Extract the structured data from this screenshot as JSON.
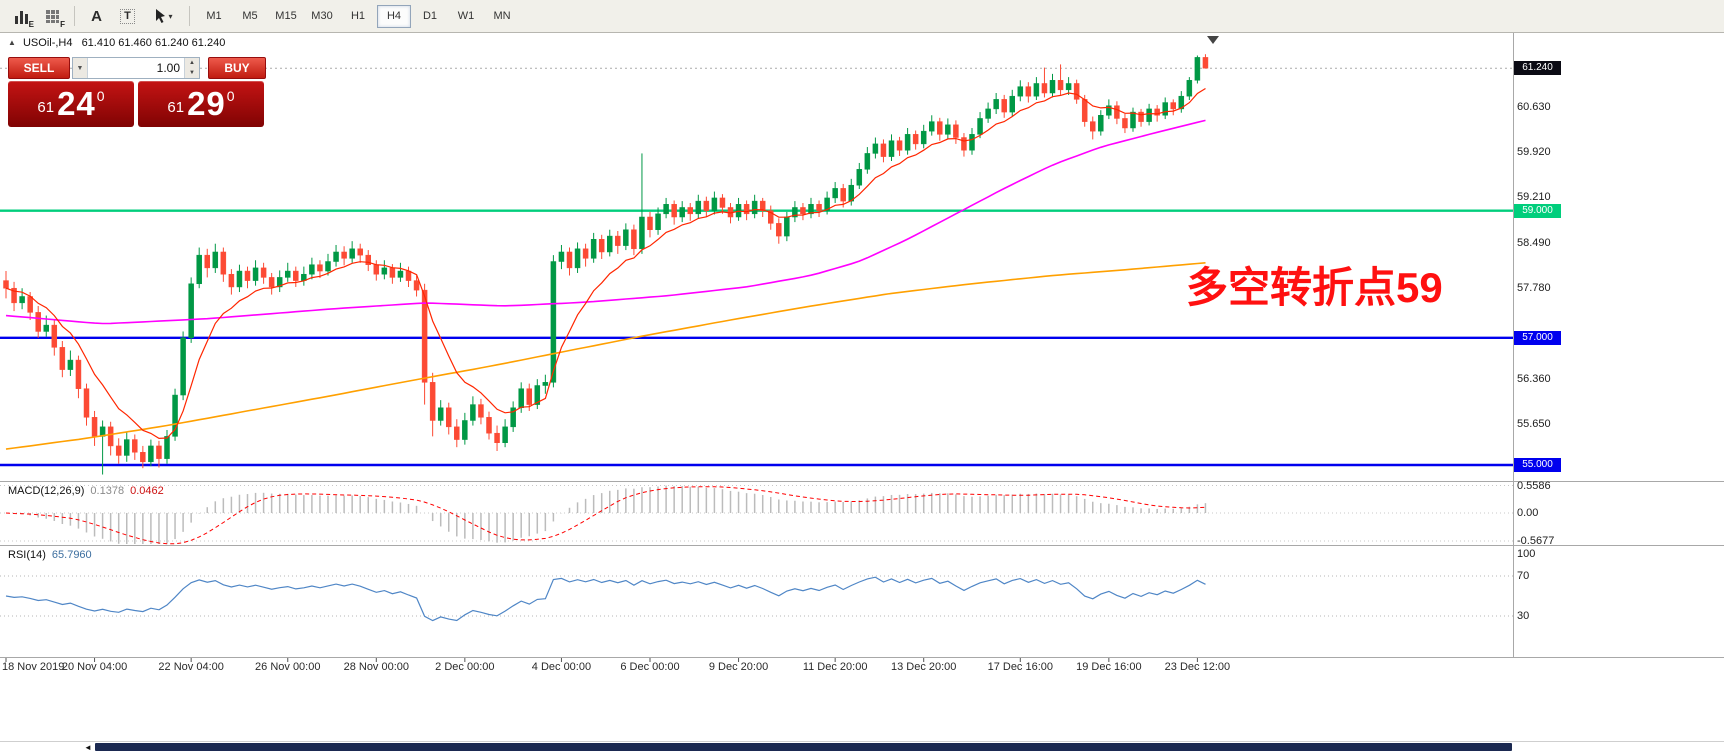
{
  "toolbar": {
    "icons": [
      {
        "name": "bar-chart-expert-icon",
        "sub": "E"
      },
      {
        "name": "grid-forecast-icon",
        "sub": "F"
      },
      {
        "name": "font-tool-icon",
        "text": "A"
      },
      {
        "name": "text-tool-icon",
        "text": "T"
      },
      {
        "name": "cursor-tools-dropdown",
        "dropdown": "▾"
      }
    ],
    "timeframes": [
      {
        "label": "M1",
        "active": false
      },
      {
        "label": "M5",
        "active": false
      },
      {
        "label": "M15",
        "active": false
      },
      {
        "label": "M30",
        "active": false
      },
      {
        "label": "H1",
        "active": false
      },
      {
        "label": "H4",
        "active": true
      },
      {
        "label": "D1",
        "active": false
      },
      {
        "label": "W1",
        "active": false
      },
      {
        "label": "MN",
        "active": false
      }
    ]
  },
  "chart_header": {
    "collapse_glyph": "▲",
    "symbol_period": "USOil-,H4",
    "ohlc": "61.410 61.460 61.240 61.240"
  },
  "trade_panel": {
    "sell_label": "SELL",
    "buy_label": "BUY",
    "volume_value": "1.00",
    "sell_price": {
      "prefix": "61",
      "big": "24",
      "sup": "0"
    },
    "buy_price": {
      "prefix": "61",
      "big": "29",
      "sup": "0"
    }
  },
  "annotation": {
    "text": "多空转折点59",
    "color": "#FF1010"
  },
  "price_axis": {
    "static_labels": [
      "60.630",
      "59.920",
      "59.210",
      "58.490",
      "57.780",
      "56.360",
      "55.650"
    ],
    "tags": [
      {
        "text": "61.240",
        "price": 61.24,
        "bg": "#0B0B14",
        "type": "current-price"
      },
      {
        "text": "59.000",
        "price": 59.0,
        "bg": "#00CE7C",
        "type": "level"
      },
      {
        "text": "57.000",
        "price": 57.0,
        "bg": "#0000EE",
        "type": "level"
      },
      {
        "text": "55.000",
        "price": 55.0,
        "bg": "#0000EE",
        "type": "level"
      }
    ]
  },
  "time_axis": [
    {
      "label": "18 Nov 2019",
      "bar": 0
    },
    {
      "label": "20 Nov 04:00",
      "bar": 11
    },
    {
      "label": "22 Nov 04:00",
      "bar": 23
    },
    {
      "label": "26 Nov 00:00",
      "bar": 35
    },
    {
      "label": "28 Nov 00:00",
      "bar": 46
    },
    {
      "label": "2 Dec 00:00",
      "bar": 57
    },
    {
      "label": "4 Dec 00:00",
      "bar": 69
    },
    {
      "label": "6 Dec 00:00",
      "bar": 80
    },
    {
      "label": "9 Dec 20:00",
      "bar": 91
    },
    {
      "label": "11 Dec 20:00",
      "bar": 103
    },
    {
      "label": "13 Dec 20:00",
      "bar": 114
    },
    {
      "label": "17 Dec 16:00",
      "bar": 126
    },
    {
      "label": "19 Dec 16:00",
      "bar": 137
    },
    {
      "label": "23 Dec 12:00",
      "bar": 148
    }
  ],
  "indicators": {
    "macd": {
      "name": "MACD(12,26,9)",
      "value1": "0.1378",
      "value2": "0.0462",
      "scale": [
        "0.5586",
        "0.00",
        "-0.5677"
      ]
    },
    "rsi": {
      "name": "RSI(14)",
      "value": "65.7960",
      "levels": [
        "100",
        "70",
        "30"
      ]
    }
  },
  "chart_data": {
    "type": "candlestick",
    "symbol": "USOil-",
    "period": "H4",
    "current_price": 61.24,
    "ohlc_current": {
      "open": 61.41,
      "high": 61.46,
      "low": 61.24,
      "close": 61.24
    },
    "price_range": [
      54.764,
      61.778
    ],
    "macd_range": [
      -0.65,
      0.63
    ],
    "rsi_range": [
      -10,
      100
    ],
    "levels": [
      {
        "price": 59.0,
        "color": "#00CE7C",
        "width": 2.4
      },
      {
        "price": 57.0,
        "color": "#0000EE",
        "width": 2.4
      },
      {
        "price": 55.0,
        "color": "#0000EE",
        "width": 2.4
      }
    ],
    "colors": {
      "up": "#009845",
      "down": "#FC4A34",
      "ma_fast": "#FF2600",
      "ma_mid": "#FF00FF",
      "ma_slow": "#FFA000",
      "macd_hist": "#BCBCBC",
      "macd_signal": "#FF0000",
      "rsi": "#4F86C6",
      "grid_dotted": "#C8C8C8",
      "separator": "#A8A8A8"
    },
    "candles": [
      [
        57.9,
        58.05,
        57.62,
        57.78
      ],
      [
        57.78,
        57.88,
        57.42,
        57.55
      ],
      [
        57.55,
        57.78,
        57.45,
        57.65
      ],
      [
        57.65,
        57.72,
        57.28,
        57.4
      ],
      [
        57.4,
        57.5,
        57.0,
        57.1
      ],
      [
        57.1,
        57.35,
        57.02,
        57.2
      ],
      [
        57.2,
        57.28,
        56.72,
        56.85
      ],
      [
        56.85,
        56.95,
        56.38,
        56.5
      ],
      [
        56.5,
        56.8,
        56.4,
        56.65
      ],
      [
        56.65,
        56.72,
        56.05,
        56.2
      ],
      [
        56.2,
        56.28,
        55.62,
        55.75
      ],
      [
        55.75,
        55.85,
        55.3,
        55.45
      ],
      [
        55.45,
        55.7,
        54.85,
        55.6
      ],
      [
        55.6,
        55.68,
        55.15,
        55.3
      ],
      [
        55.3,
        55.42,
        55.02,
        55.15
      ],
      [
        55.15,
        55.52,
        55.05,
        55.4
      ],
      [
        55.4,
        55.48,
        55.08,
        55.2
      ],
      [
        55.2,
        55.3,
        54.95,
        55.05
      ],
      [
        55.05,
        55.4,
        54.98,
        55.3
      ],
      [
        55.3,
        55.38,
        54.96,
        55.1
      ],
      [
        55.1,
        55.55,
        55.02,
        55.45
      ],
      [
        55.45,
        56.2,
        55.38,
        56.1
      ],
      [
        56.1,
        57.1,
        56.02,
        57.0
      ],
      [
        57.0,
        57.95,
        56.92,
        57.85
      ],
      [
        57.85,
        58.42,
        57.78,
        58.3
      ],
      [
        58.3,
        58.4,
        57.95,
        58.1
      ],
      [
        58.1,
        58.48,
        58.02,
        58.35
      ],
      [
        58.35,
        58.42,
        57.88,
        58.0
      ],
      [
        58.0,
        58.08,
        57.68,
        57.8
      ],
      [
        57.8,
        58.15,
        57.72,
        58.05
      ],
      [
        58.05,
        58.12,
        57.78,
        57.9
      ],
      [
        57.9,
        58.22,
        57.82,
        58.1
      ],
      [
        58.1,
        58.18,
        57.85,
        57.95
      ],
      [
        57.95,
        58.02,
        57.68,
        57.8
      ],
      [
        57.8,
        58.06,
        57.72,
        57.95
      ],
      [
        57.95,
        58.18,
        57.88,
        58.05
      ],
      [
        58.05,
        58.12,
        57.8,
        57.9
      ],
      [
        57.9,
        58.12,
        57.82,
        58.0
      ],
      [
        58.0,
        58.26,
        57.92,
        58.15
      ],
      [
        58.15,
        58.22,
        57.94,
        58.05
      ],
      [
        58.05,
        58.32,
        57.98,
        58.2
      ],
      [
        58.2,
        58.46,
        58.12,
        58.35
      ],
      [
        58.35,
        58.44,
        58.14,
        58.25
      ],
      [
        58.25,
        58.52,
        58.18,
        58.4
      ],
      [
        58.4,
        58.48,
        58.18,
        58.3
      ],
      [
        58.3,
        58.38,
        58.05,
        58.15
      ],
      [
        58.15,
        58.22,
        57.9,
        58.0
      ],
      [
        58.0,
        58.22,
        57.92,
        58.1
      ],
      [
        58.1,
        58.16,
        57.85,
        57.95
      ],
      [
        57.95,
        58.18,
        57.88,
        58.05
      ],
      [
        58.05,
        58.12,
        57.8,
        57.9
      ],
      [
        57.9,
        57.98,
        57.65,
        57.75
      ],
      [
        57.75,
        57.85,
        55.95,
        56.3
      ],
      [
        56.3,
        56.45,
        55.45,
        55.7
      ],
      [
        55.7,
        56.02,
        55.62,
        55.9
      ],
      [
        55.9,
        55.98,
        55.48,
        55.6
      ],
      [
        55.6,
        55.72,
        55.28,
        55.4
      ],
      [
        55.4,
        55.82,
        55.32,
        55.7
      ],
      [
        55.7,
        56.08,
        55.62,
        55.95
      ],
      [
        55.95,
        56.04,
        55.64,
        55.75
      ],
      [
        55.75,
        55.84,
        55.4,
        55.5
      ],
      [
        55.5,
        55.62,
        55.22,
        55.35
      ],
      [
        55.35,
        55.72,
        55.28,
        55.6
      ],
      [
        55.6,
        56.0,
        55.52,
        55.9
      ],
      [
        55.9,
        56.3,
        55.82,
        56.2
      ],
      [
        56.2,
        56.28,
        55.85,
        55.95
      ],
      [
        55.95,
        56.35,
        55.88,
        56.25
      ],
      [
        56.25,
        56.42,
        56.12,
        56.3
      ],
      [
        56.3,
        58.3,
        56.22,
        58.2
      ],
      [
        58.2,
        58.46,
        58.08,
        58.35
      ],
      [
        58.35,
        58.42,
        57.98,
        58.1
      ],
      [
        58.1,
        58.5,
        58.02,
        58.4
      ],
      [
        58.4,
        58.48,
        58.12,
        58.25
      ],
      [
        58.25,
        58.65,
        58.18,
        58.55
      ],
      [
        58.55,
        58.62,
        58.24,
        58.35
      ],
      [
        58.35,
        58.7,
        58.28,
        58.6
      ],
      [
        58.6,
        58.68,
        58.32,
        58.45
      ],
      [
        58.45,
        58.8,
        58.38,
        58.7
      ],
      [
        58.7,
        58.78,
        58.3,
        58.4
      ],
      [
        58.4,
        59.9,
        58.32,
        58.9
      ],
      [
        58.9,
        58.98,
        58.58,
        58.7
      ],
      [
        58.7,
        59.05,
        58.62,
        58.95
      ],
      [
        58.95,
        59.2,
        58.88,
        59.1
      ],
      [
        59.1,
        59.16,
        58.78,
        58.9
      ],
      [
        58.9,
        59.15,
        58.82,
        59.05
      ],
      [
        59.05,
        59.12,
        58.84,
        58.95
      ],
      [
        58.95,
        59.25,
        58.88,
        59.15
      ],
      [
        59.15,
        59.22,
        58.9,
        59.0
      ],
      [
        59.0,
        59.3,
        58.94,
        59.2
      ],
      [
        59.2,
        59.26,
        58.95,
        59.05
      ],
      [
        59.05,
        59.12,
        58.8,
        58.9
      ],
      [
        58.9,
        59.2,
        58.84,
        59.1
      ],
      [
        59.1,
        59.16,
        58.85,
        58.95
      ],
      [
        58.95,
        59.25,
        58.88,
        59.15
      ],
      [
        59.15,
        59.2,
        58.9,
        59.0
      ],
      [
        59.0,
        59.08,
        58.7,
        58.8
      ],
      [
        58.8,
        58.88,
        58.48,
        58.6
      ],
      [
        58.6,
        58.98,
        58.52,
        58.9
      ],
      [
        58.9,
        59.15,
        58.82,
        59.05
      ],
      [
        59.05,
        59.12,
        58.85,
        58.95
      ],
      [
        58.95,
        59.2,
        58.88,
        59.1
      ],
      [
        59.1,
        59.16,
        58.9,
        59.0
      ],
      [
        59.0,
        59.3,
        58.94,
        59.2
      ],
      [
        59.2,
        59.45,
        59.12,
        59.35
      ],
      [
        59.35,
        59.42,
        59.05,
        59.15
      ],
      [
        59.15,
        59.5,
        59.08,
        59.4
      ],
      [
        59.4,
        59.75,
        59.34,
        59.65
      ],
      [
        59.65,
        60.0,
        59.58,
        59.9
      ],
      [
        59.9,
        60.15,
        59.82,
        60.05
      ],
      [
        60.05,
        60.12,
        59.76,
        59.85
      ],
      [
        59.85,
        60.2,
        59.78,
        60.1
      ],
      [
        60.1,
        60.16,
        59.86,
        59.95
      ],
      [
        59.95,
        60.3,
        59.88,
        60.2
      ],
      [
        60.2,
        60.26,
        59.96,
        60.05
      ],
      [
        60.05,
        60.35,
        59.98,
        60.25
      ],
      [
        60.25,
        60.5,
        60.18,
        60.4
      ],
      [
        60.4,
        60.46,
        60.1,
        60.2
      ],
      [
        60.2,
        60.45,
        60.12,
        60.35
      ],
      [
        60.35,
        60.42,
        60.05,
        60.15
      ],
      [
        60.15,
        60.22,
        59.85,
        59.95
      ],
      [
        59.95,
        60.3,
        59.88,
        60.2
      ],
      [
        60.2,
        60.55,
        60.14,
        60.45
      ],
      [
        60.45,
        60.7,
        60.38,
        60.6
      ],
      [
        60.6,
        60.85,
        60.52,
        60.75
      ],
      [
        60.75,
        60.82,
        60.46,
        60.55
      ],
      [
        60.55,
        60.9,
        60.48,
        60.8
      ],
      [
        60.8,
        61.05,
        60.72,
        60.95
      ],
      [
        60.95,
        61.02,
        60.7,
        60.8
      ],
      [
        60.8,
        61.1,
        60.74,
        61.0
      ],
      [
        61.0,
        61.25,
        60.78,
        60.85
      ],
      [
        60.85,
        61.15,
        60.78,
        61.05
      ],
      [
        61.05,
        61.3,
        60.82,
        60.9
      ],
      [
        60.9,
        61.1,
        60.82,
        61.0
      ],
      [
        61.0,
        61.06,
        60.68,
        60.75
      ],
      [
        60.75,
        60.82,
        60.32,
        60.4
      ],
      [
        60.4,
        60.48,
        60.12,
        60.25
      ],
      [
        60.25,
        60.58,
        60.18,
        60.5
      ],
      [
        60.5,
        60.75,
        60.44,
        60.65
      ],
      [
        60.65,
        60.72,
        60.36,
        60.45
      ],
      [
        60.45,
        60.52,
        60.22,
        60.3
      ],
      [
        60.3,
        60.62,
        60.24,
        60.55
      ],
      [
        60.55,
        60.6,
        60.32,
        60.4
      ],
      [
        60.4,
        60.68,
        60.34,
        60.6
      ],
      [
        60.6,
        60.66,
        60.4,
        60.5
      ],
      [
        60.5,
        60.78,
        60.44,
        60.7
      ],
      [
        60.7,
        60.75,
        60.5,
        60.6
      ],
      [
        60.6,
        60.88,
        60.54,
        60.8
      ],
      [
        60.8,
        61.1,
        60.74,
        61.05
      ],
      [
        61.05,
        61.44,
        61.0,
        61.41
      ],
      [
        61.41,
        61.46,
        61.24,
        61.24
      ]
    ],
    "ma_slow_anchors": [
      [
        0,
        55.25
      ],
      [
        10,
        55.42
      ],
      [
        20,
        55.62
      ],
      [
        30,
        55.85
      ],
      [
        40,
        56.08
      ],
      [
        50,
        56.32
      ],
      [
        60,
        56.55
      ],
      [
        70,
        56.8
      ],
      [
        80,
        57.05
      ],
      [
        90,
        57.28
      ],
      [
        100,
        57.5
      ],
      [
        110,
        57.7
      ],
      [
        120,
        57.85
      ],
      [
        130,
        57.98
      ],
      [
        140,
        58.08
      ],
      [
        149,
        58.18
      ]
    ],
    "ma_mid_anchors": [
      [
        0,
        57.35
      ],
      [
        12,
        57.22
      ],
      [
        25,
        57.3
      ],
      [
        40,
        57.45
      ],
      [
        52,
        57.55
      ],
      [
        62,
        57.5
      ],
      [
        72,
        57.56
      ],
      [
        82,
        57.66
      ],
      [
        92,
        57.8
      ],
      [
        100,
        57.98
      ],
      [
        106,
        58.2
      ],
      [
        112,
        58.55
      ],
      [
        118,
        58.95
      ],
      [
        124,
        59.35
      ],
      [
        130,
        59.72
      ],
      [
        136,
        60.0
      ],
      [
        142,
        60.2
      ],
      [
        149,
        60.42
      ]
    ]
  }
}
